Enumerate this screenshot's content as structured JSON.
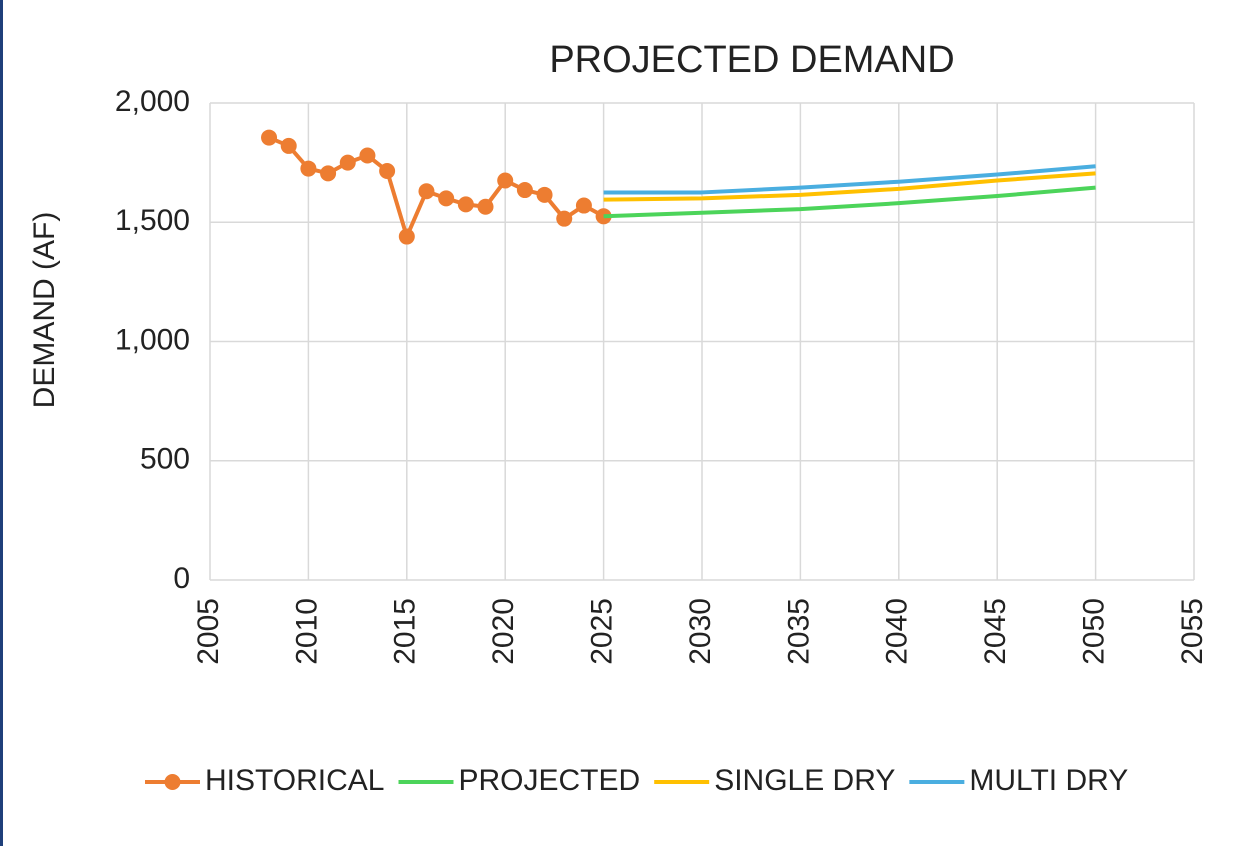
{
  "chart_data": {
    "type": "line",
    "title": "PROJECTED DEMAND",
    "ylabel": "DEMAND (AF)",
    "xlim": [
      2005,
      2055
    ],
    "xticks": [
      2005,
      2010,
      2015,
      2020,
      2025,
      2030,
      2035,
      2040,
      2045,
      2050,
      2055
    ],
    "ylim": [
      0,
      2000
    ],
    "yticks": [
      0,
      500,
      {
        "value": 1000,
        "label": "1,000"
      },
      {
        "value": 1500,
        "label": "1,500"
      },
      {
        "value": 2000,
        "label": "2,000"
      }
    ],
    "grid": true,
    "legend": "bottom",
    "series": [
      {
        "name": "HISTORICAL",
        "color": "#ed7d31",
        "marker": "circle",
        "x": [
          2008,
          2009,
          2010,
          2011,
          2012,
          2013,
          2014,
          2015,
          2016,
          2017,
          2018,
          2019,
          2020,
          2021,
          2022,
          2023,
          2024,
          2025
        ],
        "values": [
          1855,
          1820,
          1725,
          1705,
          1750,
          1780,
          1715,
          1440,
          1630,
          1600,
          1575,
          1565,
          1675,
          1635,
          1615,
          1515,
          1570,
          1525
        ]
      },
      {
        "name": "PROJECTED",
        "color": "#4cd45a",
        "x": [
          2025,
          2030,
          2035,
          2040,
          2045,
          2050
        ],
        "values": [
          1525,
          1540,
          1555,
          1580,
          1610,
          1645
        ]
      },
      {
        "name": "SINGLE DRY",
        "color": "#ffc000",
        "x": [
          2025,
          2030,
          2035,
          2040,
          2045,
          2050
        ],
        "values": [
          1595,
          1600,
          1615,
          1640,
          1675,
          1705
        ]
      },
      {
        "name": "MULTI DRY",
        "color": "#4aaee0",
        "x": [
          2025,
          2030,
          2035,
          2040,
          2045,
          2050
        ],
        "values": [
          1625,
          1625,
          1645,
          1670,
          1700,
          1735
        ]
      }
    ]
  }
}
